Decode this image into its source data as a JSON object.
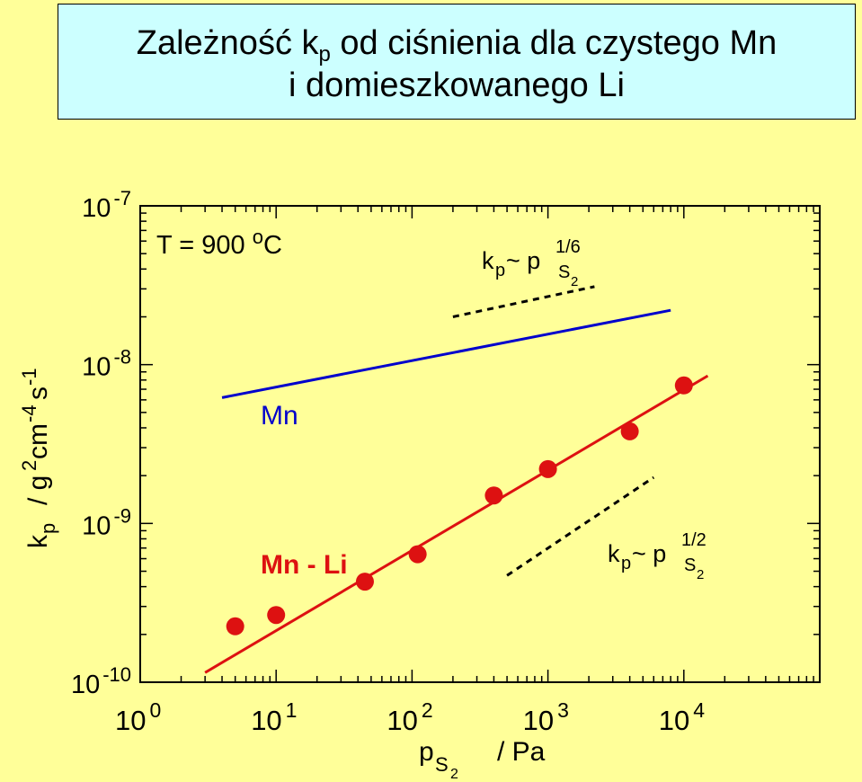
{
  "title": {
    "line1_pre": "Zależność k",
    "line1_sub": "p",
    "line1_post": " od ciśnienia dla czystego Mn",
    "line2": "i domieszkowanego Li"
  },
  "colors": {
    "background": "#FFFF99",
    "title_box": "#CCFFFF",
    "mn_line": "#0000CC",
    "mn_li": "#DD1111"
  },
  "chart_data": {
    "type": "scatter",
    "x_scale": "log",
    "y_scale": "log",
    "xlim": [
      1,
      100000
    ],
    "ylim": [
      1e-10,
      1e-07
    ],
    "x_ticks": [
      {
        "base": "10",
        "exp": "0"
      },
      {
        "base": "10",
        "exp": "1"
      },
      {
        "base": "10",
        "exp": "2"
      },
      {
        "base": "10",
        "exp": "3"
      },
      {
        "base": "10",
        "exp": "4"
      }
    ],
    "y_ticks": [
      {
        "base": "10",
        "exp": "-7"
      },
      {
        "base": "10",
        "exp": "-8"
      },
      {
        "base": "10",
        "exp": "-9"
      },
      {
        "base": "10",
        "exp": "-10"
      }
    ],
    "xlabel": {
      "p": "p",
      "sub": "S",
      "subsub": "2",
      "unit": "/ Pa"
    },
    "ylabel": {
      "k": "k",
      "ksub": "p",
      "g": "/ g",
      "gexp": "2",
      "cm": "cm",
      "cmexp": "-4",
      "s": "s",
      "sexp": "-1"
    },
    "annotation_temperature": {
      "text": "T = 900 ",
      "sup": "o",
      "unit": "C"
    },
    "series": [
      {
        "name": "Mn",
        "kind": "line",
        "color": "#0000CC",
        "x": [
          4,
          8000
        ],
        "y": [
          6.2e-09,
          2.2e-08
        ]
      },
      {
        "name": "Mn - Li",
        "kind": "points+fit",
        "color": "#DD1111",
        "points": [
          {
            "x": 5,
            "y": 2.25e-10
          },
          {
            "x": 10,
            "y": 2.65e-10
          },
          {
            "x": 45,
            "y": 4.3e-10
          },
          {
            "x": 110,
            "y": 6.4e-10
          },
          {
            "x": 400,
            "y": 1.5e-09
          },
          {
            "x": 1000,
            "y": 2.2e-09
          },
          {
            "x": 4000,
            "y": 3.8e-09
          },
          {
            "x": 10000,
            "y": 7.4e-09
          }
        ],
        "fit": {
          "x": [
            3,
            15000
          ],
          "y": [
            1.15e-10,
            8.5e-09
          ]
        }
      }
    ],
    "slope_guides": [
      {
        "name": "slope-1-6",
        "x": [
          200,
          2200
        ],
        "y": [
          2e-08,
          3.1e-08
        ],
        "label": {
          "k": "k",
          "ksub": "p",
          "tilde": " ~ p",
          "exp": "1/6",
          "sub": "S",
          "subsub": "2"
        }
      },
      {
        "name": "slope-1-2",
        "x": [
          500,
          6000
        ],
        "y": [
          4.7e-10,
          1.95e-09
        ],
        "label": {
          "k": "k",
          "ksub": "p",
          "tilde": " ~ p",
          "exp": "1/2",
          "sub": "S",
          "subsub": "2"
        }
      }
    ]
  }
}
